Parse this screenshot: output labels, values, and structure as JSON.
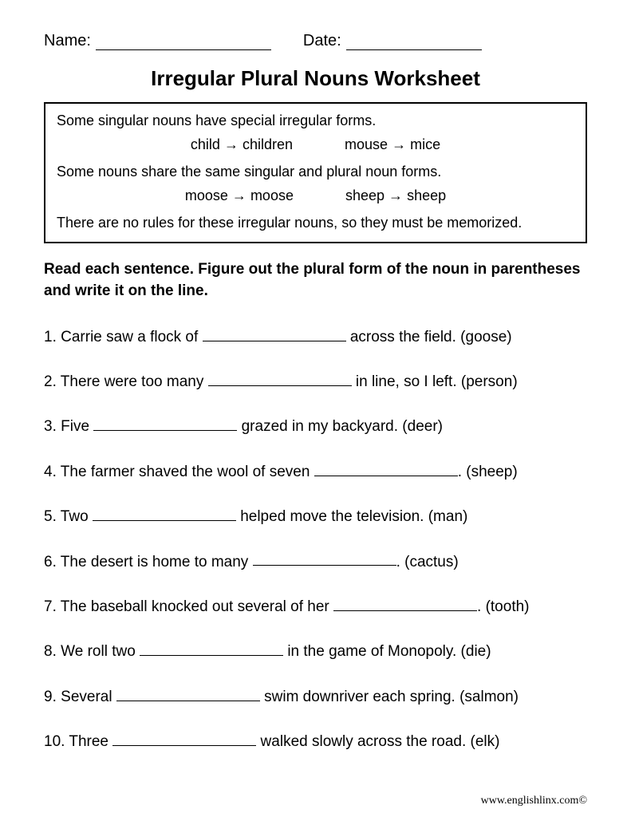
{
  "header": {
    "name_label": "Name:",
    "date_label": "Date:"
  },
  "title": "Irregular Plural Nouns Worksheet",
  "infobox": {
    "line1": "Some singular nouns have special irregular forms.",
    "ex1a": "child",
    "ex1b": "children",
    "ex2a": "mouse",
    "ex2b": "mice",
    "line2": "Some nouns share the same singular and plural noun forms.",
    "ex3a": "moose",
    "ex3b": "moose",
    "ex4a": "sheep",
    "ex4b": "sheep",
    "line3": "There are no rules for these irregular nouns, so they must be memorized."
  },
  "instructions": "Read each sentence. Figure out the plural form of the noun in parentheses and write it on the line.",
  "questions": [
    {
      "num": "1.",
      "pre": "Carrie saw a flock of ",
      "post": " across the field. (goose)"
    },
    {
      "num": "2.",
      "pre": "There were too many ",
      "post": " in line, so I left. (person)"
    },
    {
      "num": "3.",
      "pre": "Five ",
      "post": " grazed in my backyard. (deer)"
    },
    {
      "num": "4.",
      "pre": "The farmer shaved the wool of seven ",
      "post": ". (sheep)"
    },
    {
      "num": "5.",
      "pre": "Two ",
      "post": " helped move the television. (man)"
    },
    {
      "num": "6.",
      "pre": "The desert is home to many ",
      "post": ". (cactus)"
    },
    {
      "num": "7.",
      "pre": "The baseball knocked out several of her ",
      "post": ". (tooth)"
    },
    {
      "num": "8.",
      "pre": "We roll two ",
      "post": " in the game of Monopoly. (die)"
    },
    {
      "num": "9.",
      "pre": "Several ",
      "post": " swim downriver each spring. (salmon)"
    },
    {
      "num": "10.",
      "pre": "Three ",
      "post": " walked slowly across the road. (elk)"
    }
  ],
  "footer": "www.englishlinx.com©",
  "arrow": "→",
  "colors": {
    "text": "#000000",
    "background": "#ffffff",
    "border": "#000000"
  }
}
